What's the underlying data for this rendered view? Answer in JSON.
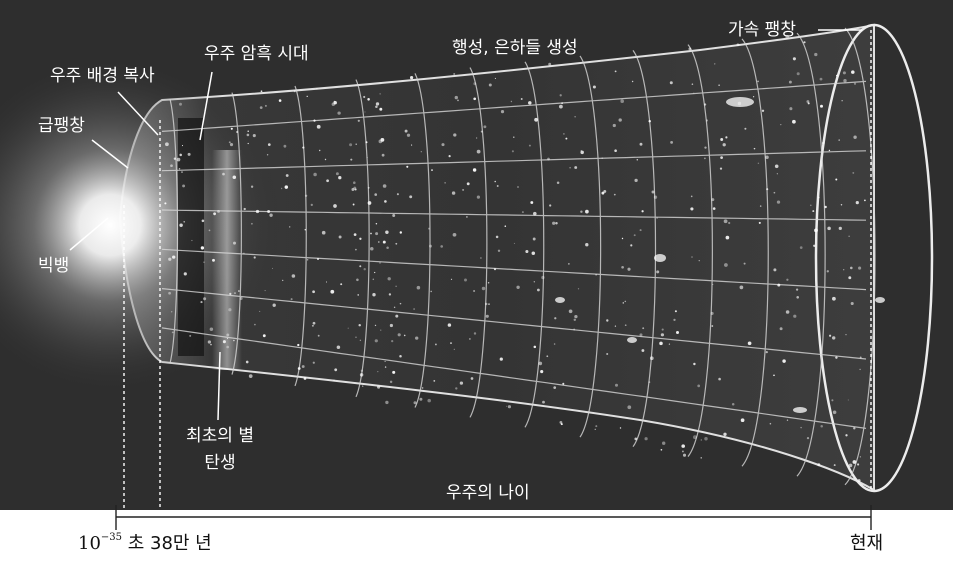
{
  "labels": {
    "planets_galaxies": "행성, 은하들 생성",
    "accelerated_expansion": "가속 팽창",
    "dark_ages": "우주 암흑 시대",
    "cmb": "우주 배경 복사",
    "inflation": "급팽창",
    "big_bang": "빅뱅",
    "first_stars_line1": "최초의 별",
    "first_stars_line2": "탄생",
    "age_of_universe": "우주의 나이",
    "time_base": "10",
    "time_exponent": "−35",
    "time_unit": "초",
    "time_cmb": "38만 년",
    "time_present": "현재"
  },
  "colors": {
    "background": "#2e2e2e",
    "grid": "#d8d8d8",
    "text_light": "#ffffff",
    "text_dark": "#111111",
    "axis": "#222222"
  }
}
